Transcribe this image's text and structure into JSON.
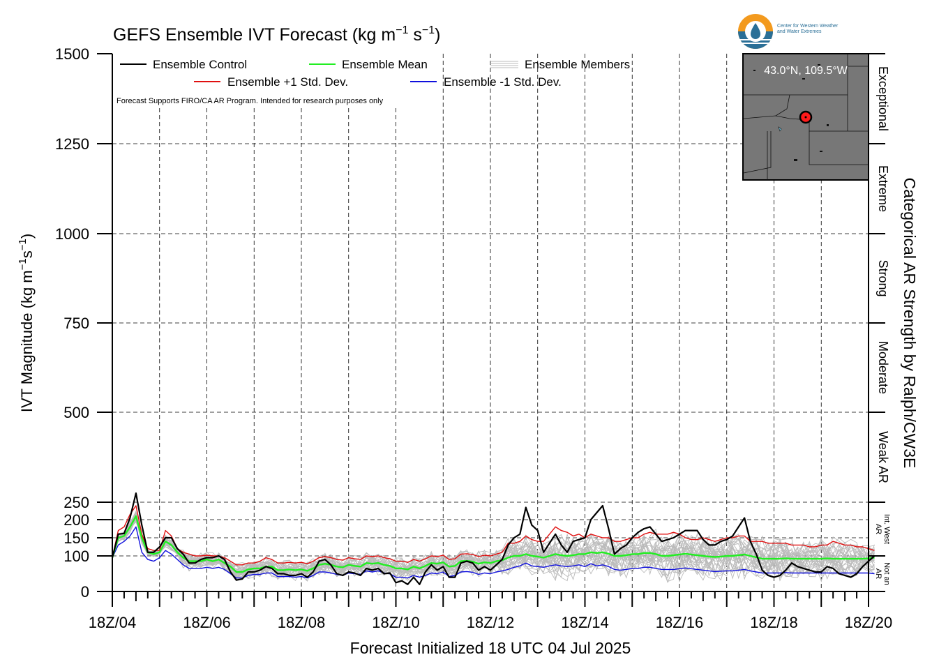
{
  "chart_data": {
    "type": "line",
    "title": "GEFS Ensemble IVT Forecast (kg m",
    "title_unit_sup1": "−1",
    "title_unit_mid": " s",
    "title_unit_sup2": "−1",
    "title_unit_end": ")",
    "ylabel": "IVT Magnitude (kg m",
    "ylabel_sup1": "−1",
    "ylabel_mid": "s",
    "ylabel_sup2": "−1",
    "ylabel_end": ")",
    "xlabel": "Forecast Initialized 18 UTC 04 Jul 2025",
    "right_label": "Categorical AR Strength by Ralph/CW3E",
    "disclaimer": "Forecast Supports FIRO/CA AR Program. Intended for research purposes only",
    "x_range_hours": [
      0,
      384
    ],
    "x_step_hours": 3,
    "ylim": [
      0,
      1500
    ],
    "y_ticks": [
      0,
      100,
      150,
      200,
      250,
      500,
      750,
      1000,
      1250,
      1500
    ],
    "y_tick_labels": [
      "0",
      "100",
      "150",
      "200",
      "250",
      "500",
      "750",
      "1000",
      "1250",
      "1500"
    ],
    "x_tick_labels": [
      "18Z/04",
      "18Z/06",
      "18Z/08",
      "18Z/10",
      "18Z/12",
      "18Z/14",
      "18Z/16",
      "18Z/18",
      "18Z/20"
    ],
    "x_tick_hours": [
      0,
      48,
      96,
      144,
      192,
      240,
      288,
      336,
      384
    ],
    "categories": [
      {
        "label": "Not an AR",
        "range": [
          0,
          100
        ]
      },
      {
        "label": "Int. West AR",
        "range": [
          100,
          250
        ]
      },
      {
        "label": "Weak AR",
        "range": [
          250,
          500
        ]
      },
      {
        "label": "Moderate",
        "range": [
          500,
          750
        ]
      },
      {
        "label": "Strong",
        "range": [
          750,
          1000
        ]
      },
      {
        "label": "Extreme",
        "range": [
          1000,
          1250
        ]
      },
      {
        "label": "Exceptional",
        "range": [
          1250,
          1500
        ]
      }
    ],
    "legend": [
      {
        "name": "Ensemble Control",
        "color": "#000000"
      },
      {
        "name": "Ensemble Mean",
        "color": "#22ee22"
      },
      {
        "name": "Ensemble Members",
        "color": "#bbbbbb"
      },
      {
        "name": "Ensemble +1 Std. Dev.",
        "color": "#e01010"
      },
      {
        "name": "Ensemble -1 Std. Dev.",
        "color": "#1010dd"
      }
    ],
    "series": {
      "control": [
        95,
        160,
        162,
        205,
        275,
        185,
        110,
        110,
        125,
        150,
        150,
        120,
        105,
        80,
        80,
        90,
        95,
        95,
        100,
        90,
        55,
        32,
        35,
        55,
        55,
        60,
        70,
        65,
        50,
        50,
        45,
        45,
        50,
        40,
        55,
        85,
        90,
        75,
        50,
        45,
        55,
        52,
        45,
        65,
        60,
        65,
        50,
        52,
        25,
        30,
        20,
        40,
        20,
        55,
        75,
        60,
        70,
        40,
        40,
        80,
        85,
        80,
        60,
        70,
        60,
        75,
        90,
        130,
        150,
        160,
        235,
        185,
        170,
        110,
        135,
        160,
        130,
        110,
        140,
        145,
        150,
        200,
        220,
        240,
        175,
        105,
        120,
        130,
        150,
        165,
        175,
        180,
        160,
        140,
        145,
        150,
        160,
        170,
        170,
        170,
        145,
        130,
        130,
        140,
        145,
        155,
        180,
        205,
        140,
        105,
        60,
        45,
        40,
        45,
        60,
        80,
        70,
        65,
        60,
        55,
        55,
        70,
        65,
        50,
        45,
        40,
        50,
        70,
        85,
        100
      ],
      "mean": [
        95,
        150,
        155,
        180,
        210,
        150,
        110,
        105,
        110,
        140,
        130,
        110,
        95,
        85,
        85,
        85,
        90,
        85,
        90,
        80,
        70,
        55,
        55,
        62,
        65,
        65,
        70,
        70,
        60,
        60,
        62,
        60,
        62,
        58,
        65,
        75,
        78,
        75,
        70,
        68,
        75,
        72,
        70,
        80,
        78,
        80,
        75,
        72,
        65,
        65,
        62,
        70,
        65,
        72,
        80,
        78,
        82,
        70,
        72,
        85,
        86,
        84,
        78,
        82,
        80,
        85,
        88,
        95,
        100,
        100,
        105,
        100,
        98,
        95,
        100,
        105,
        102,
        100,
        102,
        105,
        105,
        110,
        108,
        110,
        106,
        100,
        100,
        102,
        105,
        105,
        108,
        108,
        105,
        100,
        100,
        102,
        104,
        106,
        104,
        102,
        100,
        98,
        97,
        98,
        100,
        100,
        102,
        104,
        100,
        96,
        92,
        92,
        92,
        92,
        93,
        92,
        92,
        92,
        92,
        92,
        92,
        93,
        92,
        92,
        92,
        92,
        92,
        92,
        93,
        95
      ],
      "plus1": [
        95,
        170,
        180,
        215,
        240,
        160,
        120,
        115,
        115,
        170,
        155,
        120,
        110,
        105,
        100,
        100,
        102,
        100,
        100,
        95,
        85,
        75,
        75,
        80,
        80,
        85,
        95,
        90,
        80,
        80,
        82,
        80,
        82,
        78,
        85,
        95,
        98,
        95,
        90,
        88,
        95,
        92,
        90,
        100,
        98,
        100,
        95,
        92,
        85,
        85,
        82,
        90,
        85,
        92,
        100,
        98,
        102,
        90,
        92,
        105,
        106,
        104,
        98,
        102,
        100,
        105,
        110,
        135,
        135,
        140,
        155,
        145,
        140,
        140,
        160,
        180,
        170,
        165,
        155,
        160,
        150,
        160,
        155,
        150,
        150,
        140,
        140,
        145,
        150,
        150,
        160,
        165,
        160,
        160,
        160,
        165,
        160,
        150,
        145,
        145,
        150,
        145,
        140,
        145,
        150,
        150,
        155,
        155,
        140,
        140,
        140,
        135,
        135,
        135,
        135,
        130,
        130,
        130,
        125,
        125,
        130,
        130,
        140,
        135,
        130,
        130,
        125,
        125,
        120,
        115
      ],
      "minus1": [
        95,
        130,
        140,
        155,
        180,
        110,
        90,
        85,
        95,
        115,
        105,
        90,
        75,
        65,
        65,
        65,
        68,
        65,
        68,
        62,
        50,
        38,
        38,
        45,
        48,
        48,
        52,
        52,
        42,
        42,
        42,
        40,
        42,
        38,
        45,
        55,
        55,
        52,
        48,
        45,
        52,
        50,
        48,
        58,
        55,
        58,
        52,
        50,
        40,
        40,
        38,
        45,
        40,
        45,
        52,
        50,
        55,
        42,
        45,
        55,
        56,
        54,
        48,
        52,
        50,
        55,
        58,
        62,
        68,
        72,
        80,
        72,
        70,
        68,
        72,
        75,
        72,
        70,
        72,
        75,
        70,
        78,
        72,
        75,
        70,
        62,
        60,
        62,
        65,
        65,
        68,
        68,
        65,
        62,
        62,
        62,
        64,
        66,
        64,
        62,
        60,
        58,
        56,
        57,
        58,
        58,
        60,
        62,
        58,
        55,
        52,
        52,
        52,
        52,
        53,
        52,
        52,
        52,
        52,
        52,
        52,
        52,
        52,
        52,
        52,
        52,
        52,
        52,
        52,
        50
      ]
    },
    "members_count": 30,
    "inset_location": "43.0°N, 109.5°W",
    "logo_text_line1": "Center for Western Weather",
    "logo_text_line2": "and Water Extremes",
    "colors": {
      "control": "#000000",
      "mean": "#22ee22",
      "plus1": "#e01010",
      "minus1": "#1010dd",
      "members": "#bbbbbb",
      "grid": "#000000",
      "map_bg": "#777777",
      "logo_orange": "#f39a1e",
      "logo_blue": "#2a6f97"
    }
  }
}
